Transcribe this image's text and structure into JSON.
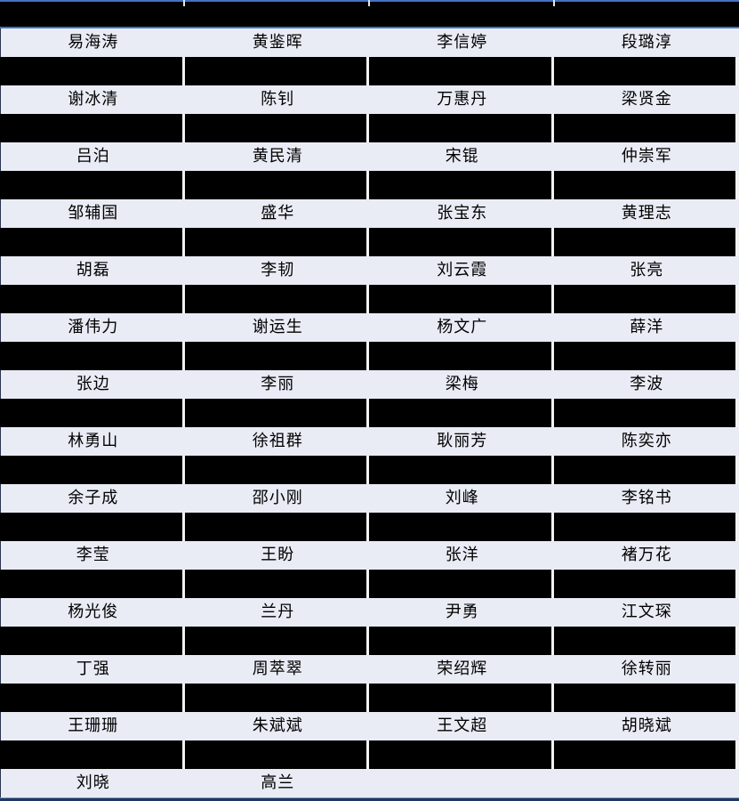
{
  "table": {
    "columns": 4,
    "header": {
      "type": "redacted-bar"
    },
    "name_rows": [
      [
        "易海涛",
        "黄鉴晖",
        "李信婷",
        "段璐淳"
      ],
      [
        "谢冰清",
        "陈钊",
        "万惠丹",
        "梁贤金"
      ],
      [
        "吕泊",
        "黄民清",
        "宋锟",
        "仲崇军"
      ],
      [
        "邹辅国",
        "盛华",
        "张宝东",
        "黄理志"
      ],
      [
        "胡磊",
        "李韧",
        "刘云霞",
        "张亮"
      ],
      [
        "潘伟力",
        "谢运生",
        "杨文广",
        "薛洋"
      ],
      [
        "张边",
        "李丽",
        "梁梅",
        "李波"
      ],
      [
        "林勇山",
        "徐祖群",
        "耿丽芳",
        "陈奕亦"
      ],
      [
        "余子成",
        "邵小刚",
        "刘峰",
        "李铭书"
      ],
      [
        "李莹",
        "王盼",
        "张洋",
        "褚万花"
      ],
      [
        "杨光俊",
        "兰丹",
        "尹勇",
        "江文琛"
      ],
      [
        "丁强",
        "周萃翠",
        "荣绍辉",
        "徐转丽"
      ],
      [
        "王珊珊",
        "朱斌斌",
        "王文超",
        "胡晓斌"
      ],
      [
        "刘晓",
        "高兰",
        "",
        ""
      ]
    ],
    "redacted_separator_between_rows": true
  },
  "colors": {
    "redaction_black": "#000000",
    "row_background": "#e9ecf5",
    "accent_blue": "#4472c4",
    "bottom_border_navy": "#1f3864",
    "cell_gap_white": "#f2f2f2",
    "left_edge_line": "#2a3550"
  }
}
